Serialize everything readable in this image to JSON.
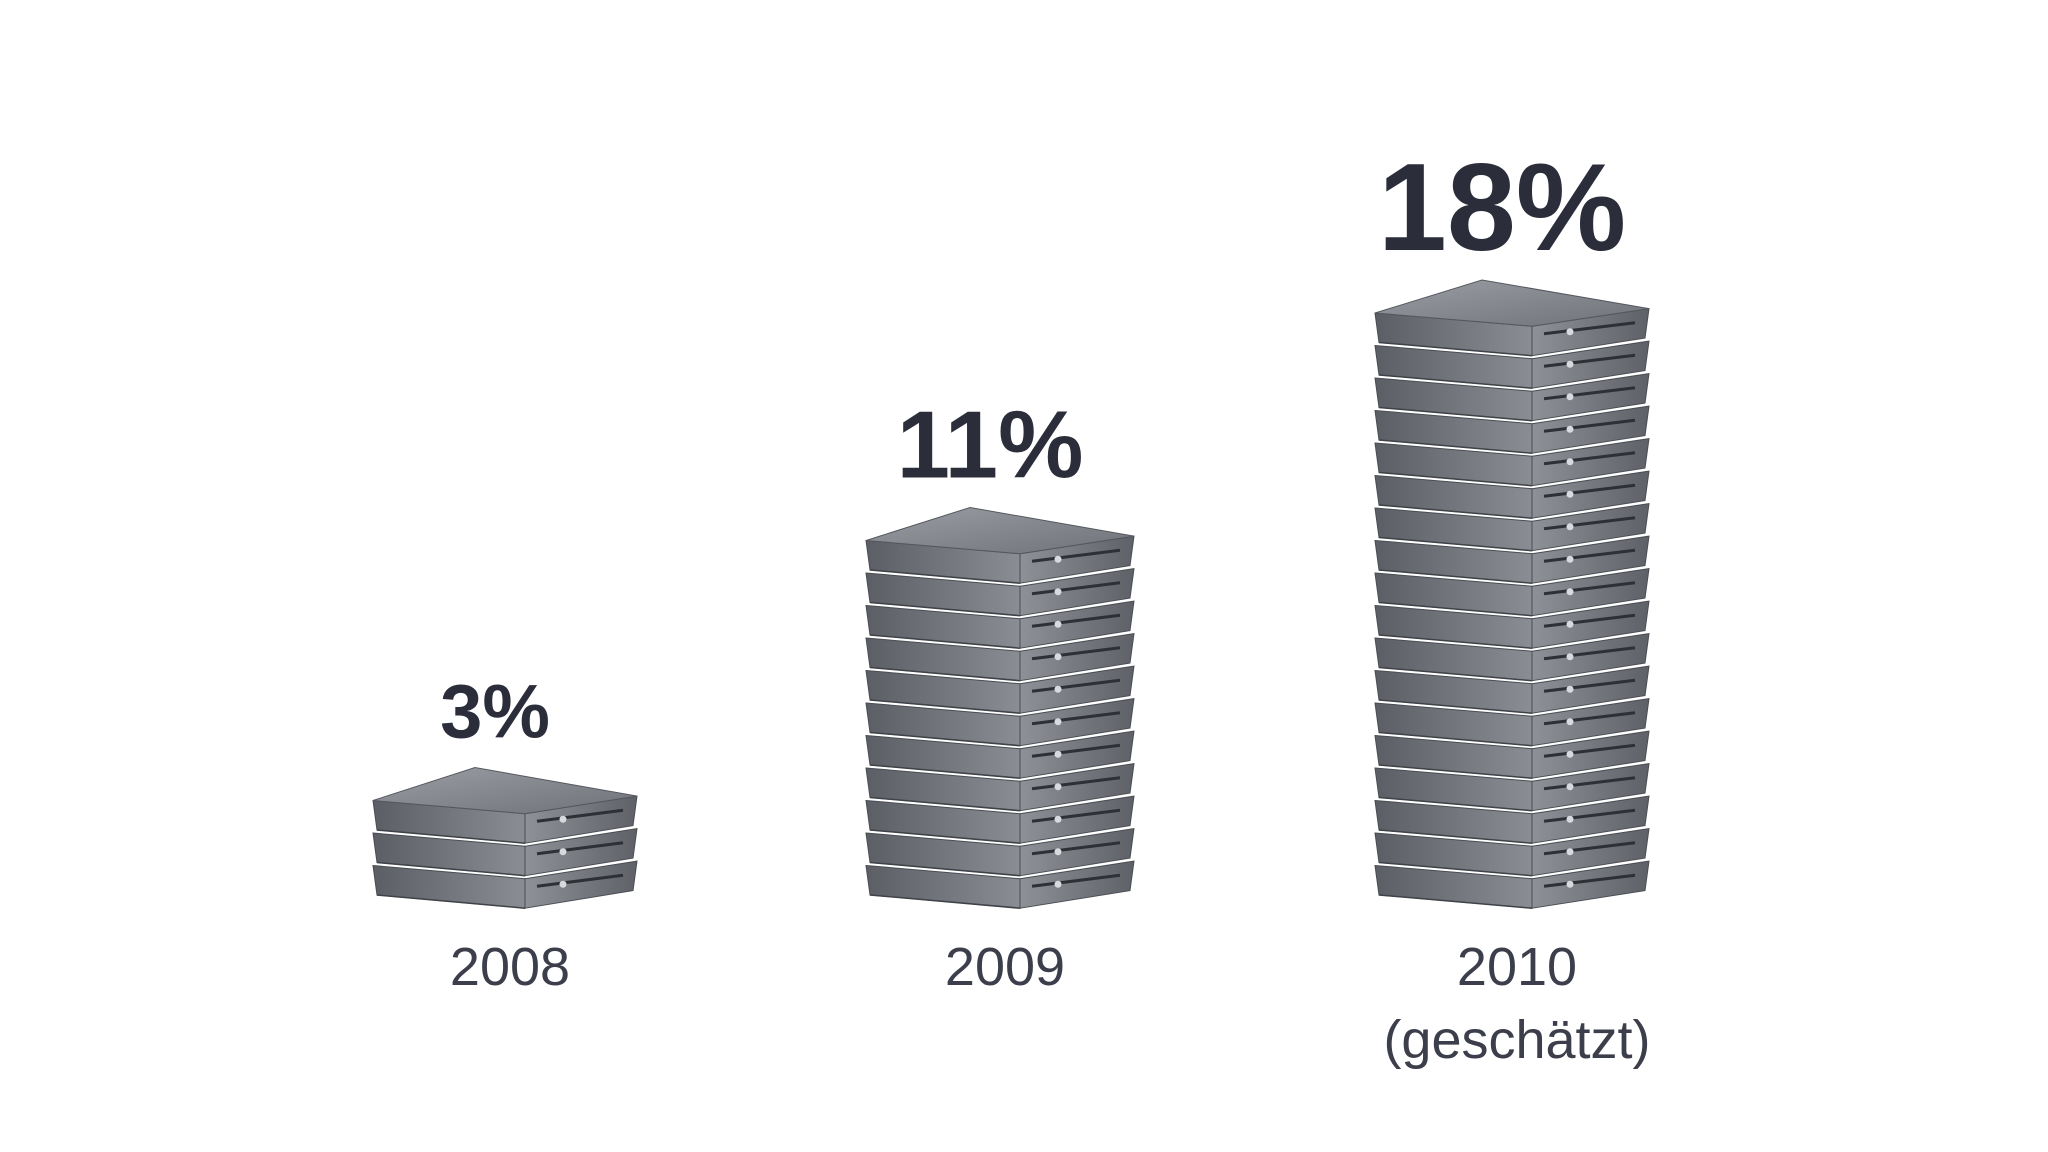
{
  "chart_data": {
    "type": "bar",
    "title": "",
    "xlabel": "",
    "ylabel": "",
    "categories": [
      "2008",
      "2009",
      "2010"
    ],
    "category_notes": [
      "",
      "",
      "(geschätzt)"
    ],
    "values": [
      3,
      11,
      18
    ],
    "value_labels": [
      "3%",
      "11%",
      "18%"
    ],
    "unit": "%",
    "grid": false,
    "legend": "none",
    "mark_style": "stacked-server-units",
    "colors": {
      "server_top": "#8c8f95",
      "server_front": "#6e7177",
      "server_side": "#55585e",
      "label_dark": "#2b2e3a",
      "label_year": "#3c3f4b"
    }
  }
}
